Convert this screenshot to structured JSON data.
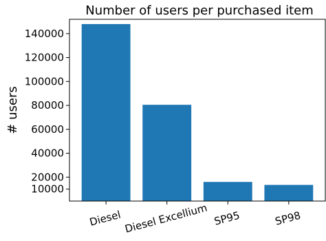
{
  "chart_data": {
    "type": "bar",
    "title": "Number of users per purchased item",
    "xlabel": "",
    "ylabel": "# users",
    "categories": [
      "Diesel",
      "Diesel Excellium",
      "SP95",
      "SP98"
    ],
    "values": [
      148000,
      80500,
      16000,
      13500
    ],
    "yticks": [
      10000,
      20000,
      40000,
      60000,
      80000,
      100000,
      120000,
      140000
    ],
    "ylim": [
      0,
      152000
    ],
    "grid": false,
    "bar_color": "#1f77b4"
  }
}
